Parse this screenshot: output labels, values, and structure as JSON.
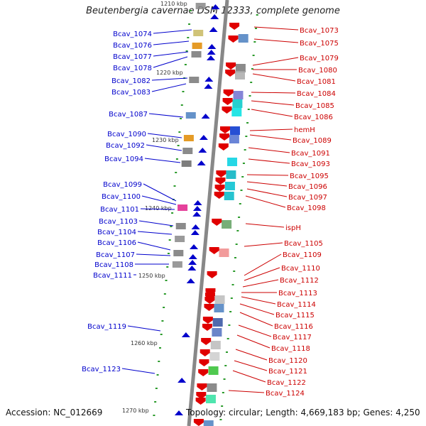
{
  "title": "Beutenbergia cavernae DSM 12333, complete genome",
  "footer": {
    "accession": "Accession: NC_012669",
    "topology": "Topology: circular; Length: 4,669,183 bp; Genes: 4,250"
  },
  "colors": {
    "reverse_strand": "#0000cc",
    "forward_strand": "#cc0000",
    "backbone": "#888888"
  },
  "kbp_labels": [
    "1210 kbp",
    "1220 kbp",
    "1230 kbp",
    "1240 kbp",
    "1250 kbp",
    "1260 kbp",
    "1270 kbp"
  ],
  "left_genes": [
    "Bcav_1074",
    "Bcav_1076",
    "Bcav_1077",
    "Bcav_1078",
    "Bcav_1082",
    "Bcav_1083",
    "Bcav_1087",
    "Bcav_1090",
    "Bcav_1092",
    "Bcav_1094",
    "Bcav_1099",
    "Bcav_1100",
    "Bcav_1101",
    "Bcav_1103",
    "Bcav_1104",
    "Bcav_1106",
    "Bcav_1107",
    "Bcav_1108",
    "Bcav_1111",
    "Bcav_1119",
    "Bcav_1123"
  ],
  "right_genes": [
    "Bcav_1073",
    "Bcav_1075",
    "Bcav_1079",
    "Bcav_1080",
    "Bcav_1081",
    "Bcav_1084",
    "Bcav_1085",
    "Bcav_1086",
    "hemH",
    "Bcav_1089",
    "Bcav_1091",
    "Bcav_1093",
    "Bcav_1095",
    "Bcav_1096",
    "Bcav_1097",
    "Bcav_1098",
    "ispH",
    "Bcav_1105",
    "Bcav_1109",
    "Bcav_1110",
    "Bcav_1112",
    "Bcav_1113",
    "Bcav_1114",
    "Bcav_1115",
    "Bcav_1116",
    "Bcav_1117",
    "Bcav_1118",
    "Bcav_1120",
    "Bcav_1121",
    "Bcav_1122",
    "Bcav_1124"
  ]
}
